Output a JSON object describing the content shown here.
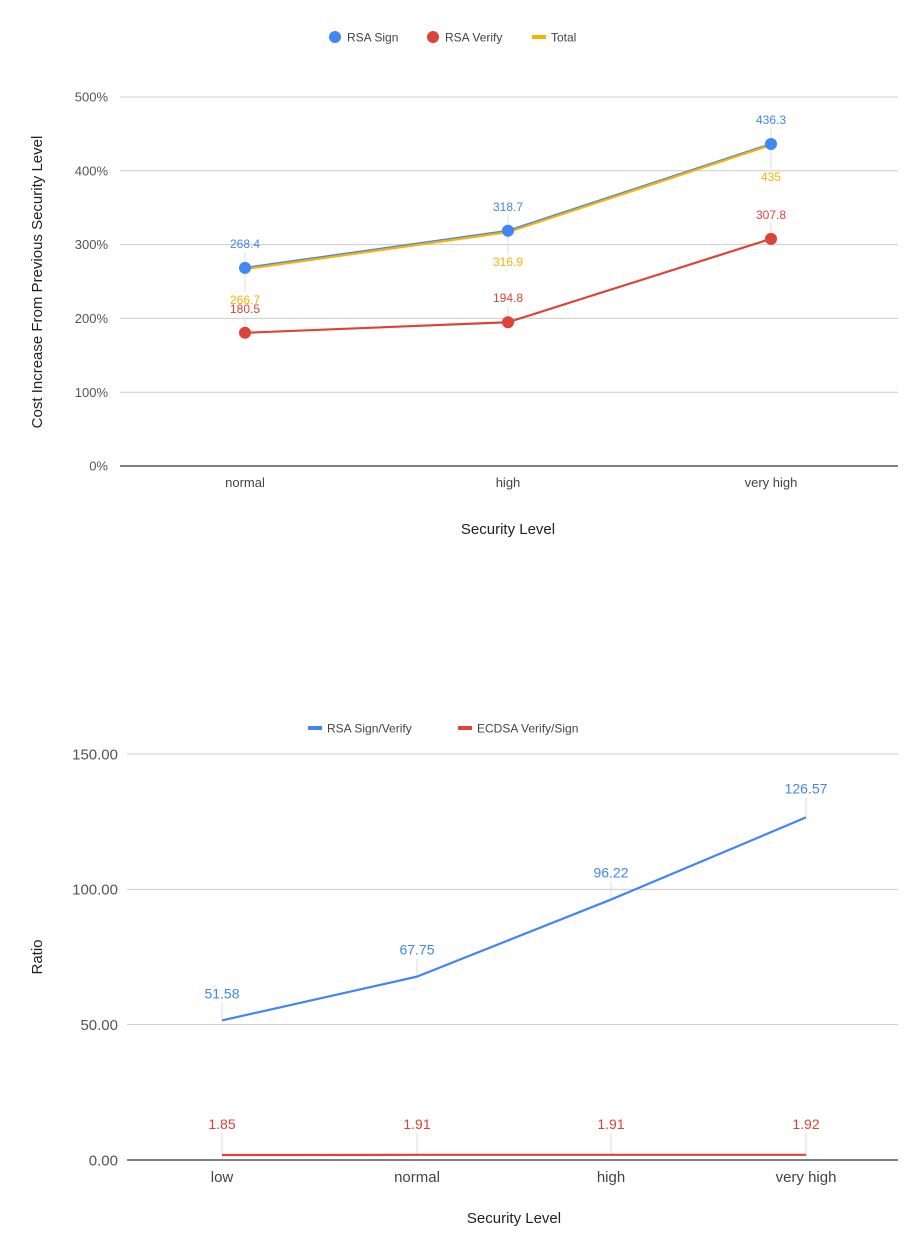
{
  "chart_data": [
    {
      "type": "line",
      "title": "",
      "xlabel": "Security Level",
      "ylabel": "Cost Increase From Previous Security Level",
      "categories": [
        "normal",
        "high",
        "very high"
      ],
      "ylim": [
        0,
        500
      ],
      "yticks": [
        0,
        100,
        200,
        300,
        400,
        500
      ],
      "ytick_labels": [
        "0%",
        "100%",
        "200%",
        "300%",
        "400%",
        "500%"
      ],
      "grid": true,
      "legend_position": "top",
      "series": [
        {
          "name": "RSA Sign",
          "values": [
            268.4,
            318.7,
            436.3
          ],
          "labels": [
            "268.4",
            "318.7",
            "436.3"
          ],
          "color": "#4285f4",
          "markers": true
        },
        {
          "name": "RSA Verify",
          "values": [
            180.5,
            194.8,
            307.8
          ],
          "labels": [
            "180.5",
            "194.8",
            "307.8"
          ],
          "color": "#db4437",
          "markers": true
        },
        {
          "name": "Total",
          "values": [
            266.7,
            316.9,
            435
          ],
          "labels": [
            "266.7",
            "316.9",
            "435"
          ],
          "color": "#f4b400",
          "markers": false
        }
      ]
    },
    {
      "type": "line",
      "title": "",
      "xlabel": "Security Level",
      "ylabel": "Ratio",
      "categories": [
        "low",
        "normal",
        "high",
        "very high"
      ],
      "ylim": [
        0,
        150
      ],
      "yticks": [
        0,
        50,
        100,
        150
      ],
      "ytick_labels": [
        "0.00",
        "50.00",
        "100.00",
        "150.00"
      ],
      "grid": true,
      "legend_position": "top",
      "series": [
        {
          "name": "RSA Sign/Verify",
          "values": [
            51.58,
            67.75,
            96.22,
            126.57
          ],
          "labels": [
            "51.58",
            "67.75",
            "96.22",
            "126.57"
          ],
          "color": "#4285f4",
          "markers": false
        },
        {
          "name": "ECDSA Verify/Sign",
          "values": [
            1.85,
            1.91,
            1.91,
            1.92
          ],
          "labels": [
            "1.85",
            "1.91",
            "1.91",
            "1.92"
          ],
          "color": "#db4437",
          "markers": false
        }
      ]
    }
  ]
}
